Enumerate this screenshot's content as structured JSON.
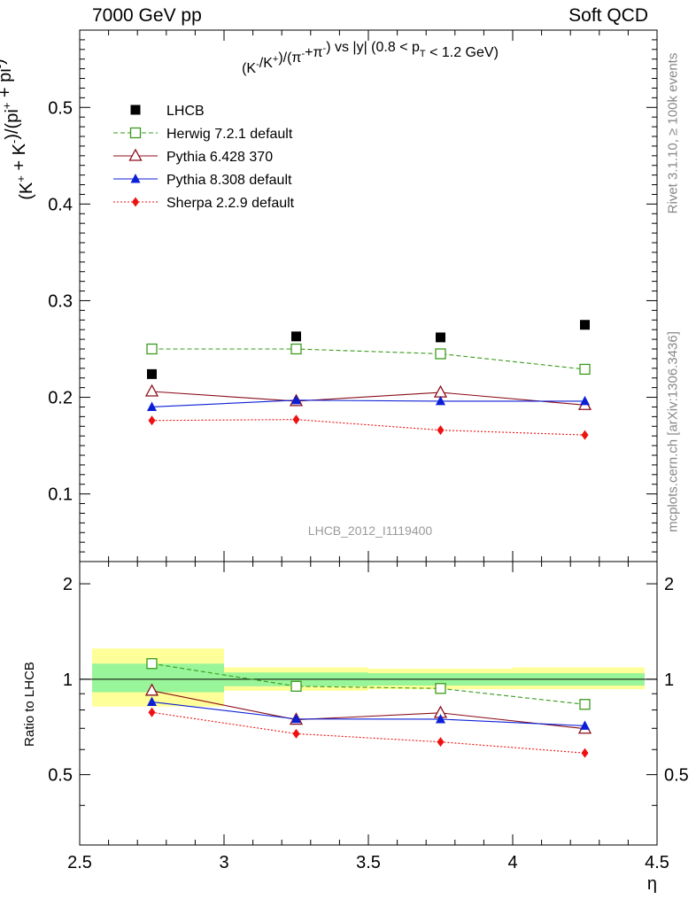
{
  "header": {
    "left": "7000 GeV pp",
    "right": "Soft QCD"
  },
  "side_labels": {
    "rivet": "Rivet 3.1.10, ≥ 100k events",
    "mcplots": "mcplots.cern.ch [arXiv:1306.3436]"
  },
  "chart_data": [
    {
      "type": "line",
      "title": "(K⁻/K⁺)/(π⁻+π⁻) vs |y| (0.8 < p_T < 1.2 GeV)",
      "xlabel": "η",
      "ylabel": "(K⁺ + K⁻)/(pi⁺ + pi⁻)",
      "watermark": "LHCB_2012_I1119400",
      "xlim": [
        2.5,
        4.5
      ],
      "ylim": [
        0.03,
        0.58
      ],
      "yticks": [
        0.1,
        0.2,
        0.3,
        0.4,
        0.5
      ],
      "ytick_labels": [
        "0.1",
        "0.2",
        "0.3",
        "0.4",
        "0.5"
      ],
      "x": [
        2.75,
        3.25,
        3.75,
        4.25
      ],
      "legend_position": "top-left",
      "series": [
        {
          "name": "LHCB",
          "values": [
            0.224,
            0.263,
            0.262,
            0.275
          ],
          "color": "#000000",
          "marker": "filled-square",
          "line": "none"
        },
        {
          "name": "Herwig 7.2.1 default",
          "values": [
            0.25,
            0.25,
            0.245,
            0.229
          ],
          "color": "#3a9b1c",
          "marker": "open-square",
          "line": "dashed"
        },
        {
          "name": "Pythia 6.428 370",
          "values": [
            0.206,
            0.196,
            0.205,
            0.192
          ],
          "color": "#8b0e1a",
          "marker": "open-triangle",
          "line": "solid"
        },
        {
          "name": "Pythia 8.308 default",
          "values": [
            0.19,
            0.197,
            0.196,
            0.196
          ],
          "color": "#0b1fd6",
          "marker": "filled-triangle",
          "line": "solid"
        },
        {
          "name": "Sherpa 2.2.9 default",
          "values": [
            0.176,
            0.177,
            0.166,
            0.161
          ],
          "color": "#ee1111",
          "marker": "filled-diamond",
          "line": "dotted"
        }
      ]
    },
    {
      "type": "line",
      "ylabel": "Ratio to LHCB",
      "xlabel": "η",
      "xlim": [
        2.5,
        4.5
      ],
      "ylim": [
        0.3,
        2.35
      ],
      "log_y": true,
      "yticks": [
        0.5,
        1,
        2
      ],
      "ytick_labels": [
        "0.5",
        "1",
        "2"
      ],
      "xticks": [
        2.5,
        3,
        3.5,
        4,
        4.5
      ],
      "xtick_labels": [
        "2.5",
        "3",
        "3.5",
        "4",
        "4.5"
      ],
      "x": [
        2.75,
        3.25,
        3.75,
        4.25
      ],
      "bands": [
        {
          "x": [
            2.5,
            3.0
          ],
          "inner": [
            0.91,
            1.12
          ],
          "outer": [
            0.82,
            1.25
          ]
        },
        {
          "x": [
            3.0,
            3.5
          ],
          "inner": [
            0.95,
            1.05
          ],
          "outer": [
            0.92,
            1.09
          ]
        },
        {
          "x": [
            3.5,
            4.0
          ],
          "inner": [
            0.955,
            1.045
          ],
          "outer": [
            0.93,
            1.08
          ]
        },
        {
          "x": [
            4.0,
            4.5
          ],
          "inner": [
            0.955,
            1.045
          ],
          "outer": [
            0.93,
            1.09
          ]
        }
      ],
      "series": [
        {
          "name": "Herwig 7.2.1 default",
          "values": [
            1.12,
            0.95,
            0.935,
            0.833
          ],
          "color": "#3a9b1c",
          "marker": "open-square",
          "line": "dashed"
        },
        {
          "name": "Pythia 6.428 370",
          "values": [
            0.92,
            0.745,
            0.783,
            0.698
          ],
          "color": "#8b0e1a",
          "marker": "open-triangle",
          "line": "solid"
        },
        {
          "name": "Pythia 8.308 default",
          "values": [
            0.848,
            0.749,
            0.748,
            0.713
          ],
          "color": "#0b1fd6",
          "marker": "filled-triangle",
          "line": "solid"
        },
        {
          "name": "Sherpa 2.2.9 default",
          "values": [
            0.786,
            0.673,
            0.634,
            0.585
          ],
          "color": "#ee1111",
          "marker": "filled-diamond",
          "line": "dotted"
        }
      ]
    }
  ]
}
